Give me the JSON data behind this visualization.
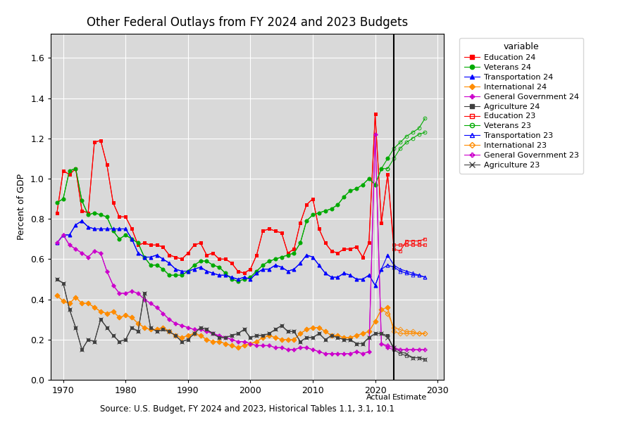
{
  "title": "Other Federal Outlays from FY 2024 and 2023 Budgets",
  "source_label": "Source: U.S. Budget, FY 2024 and 2023, Historical Tables 1.1, 3.1, 10.1",
  "ylabel": "Percent of GDP",
  "ylim": [
    0.0,
    1.72
  ],
  "xlim": [
    1968,
    2031
  ],
  "divider_year": 2023,
  "background_color": "#d9d9d9",
  "years_actual": [
    1969,
    1970,
    1971,
    1972,
    1973,
    1974,
    1975,
    1976,
    1977,
    1978,
    1979,
    1980,
    1981,
    1982,
    1983,
    1984,
    1985,
    1986,
    1987,
    1988,
    1989,
    1990,
    1991,
    1992,
    1993,
    1994,
    1995,
    1996,
    1997,
    1998,
    1999,
    2000,
    2001,
    2002,
    2003,
    2004,
    2005,
    2006,
    2007,
    2008,
    2009,
    2010,
    2011,
    2012,
    2013,
    2014,
    2015,
    2016,
    2017,
    2018,
    2019,
    2020,
    2021,
    2022
  ],
  "education_24": [
    0.83,
    1.04,
    1.02,
    1.05,
    0.84,
    0.83,
    1.18,
    1.19,
    1.07,
    0.88,
    0.81,
    0.81,
    0.75,
    0.67,
    0.68,
    0.67,
    0.67,
    0.66,
    0.62,
    0.61,
    0.6,
    0.63,
    0.67,
    0.68,
    0.62,
    0.63,
    0.6,
    0.6,
    0.58,
    0.54,
    0.53,
    0.55,
    0.62,
    0.74,
    0.75,
    0.74,
    0.73,
    0.63,
    0.65,
    0.78,
    0.87,
    0.9,
    0.75,
    0.68,
    0.64,
    0.63,
    0.65,
    0.65,
    0.66,
    0.61,
    0.68,
    1.32,
    0.78,
    1.02
  ],
  "education_24_est_x": [
    2022,
    2023,
    2024,
    2025,
    2026,
    2027,
    2028
  ],
  "education_24_est_y": [
    1.02,
    0.65,
    0.64,
    0.69,
    0.69,
    0.69,
    0.7
  ],
  "veterans_24": [
    0.88,
    0.9,
    1.04,
    1.05,
    0.89,
    0.82,
    0.83,
    0.82,
    0.81,
    0.74,
    0.7,
    0.72,
    0.7,
    0.68,
    0.61,
    0.57,
    0.57,
    0.55,
    0.52,
    0.52,
    0.52,
    0.54,
    0.57,
    0.59,
    0.59,
    0.57,
    0.56,
    0.53,
    0.5,
    0.49,
    0.5,
    0.51,
    0.54,
    0.57,
    0.59,
    0.6,
    0.61,
    0.62,
    0.63,
    0.68,
    0.79,
    0.82,
    0.83,
    0.84,
    0.85,
    0.87,
    0.91,
    0.94,
    0.95,
    0.97,
    1.0,
    0.97,
    1.05,
    1.1
  ],
  "veterans_24_est_x": [
    2022,
    2023,
    2024,
    2025,
    2026,
    2027,
    2028
  ],
  "veterans_24_est_y": [
    1.1,
    1.15,
    1.18,
    1.21,
    1.23,
    1.25,
    1.3
  ],
  "transportation_24": [
    0.68,
    0.72,
    0.72,
    0.77,
    0.79,
    0.76,
    0.75,
    0.75,
    0.75,
    0.75,
    0.75,
    0.75,
    0.7,
    0.63,
    0.61,
    0.61,
    0.62,
    0.6,
    0.58,
    0.55,
    0.54,
    0.54,
    0.55,
    0.56,
    0.54,
    0.53,
    0.52,
    0.52,
    0.51,
    0.5,
    0.51,
    0.5,
    0.53,
    0.55,
    0.55,
    0.57,
    0.56,
    0.54,
    0.55,
    0.58,
    0.62,
    0.61,
    0.57,
    0.53,
    0.51,
    0.51,
    0.53,
    0.52,
    0.5,
    0.5,
    0.52,
    0.47,
    0.55,
    0.62
  ],
  "transportation_24_est_x": [
    2022,
    2023,
    2024,
    2025,
    2026,
    2027,
    2028
  ],
  "transportation_24_est_y": [
    0.62,
    0.57,
    0.55,
    0.54,
    0.53,
    0.52,
    0.51
  ],
  "international_24": [
    0.42,
    0.39,
    0.38,
    0.41,
    0.38,
    0.38,
    0.36,
    0.34,
    0.33,
    0.34,
    0.31,
    0.32,
    0.31,
    0.28,
    0.26,
    0.25,
    0.25,
    0.26,
    0.24,
    0.22,
    0.21,
    0.22,
    0.23,
    0.22,
    0.2,
    0.19,
    0.19,
    0.18,
    0.17,
    0.16,
    0.17,
    0.18,
    0.19,
    0.21,
    0.22,
    0.21,
    0.2,
    0.2,
    0.2,
    0.23,
    0.25,
    0.26,
    0.26,
    0.24,
    0.22,
    0.22,
    0.21,
    0.21,
    0.22,
    0.23,
    0.24,
    0.29,
    0.35,
    0.36
  ],
  "international_24_est_x": [
    2022,
    2023,
    2024,
    2025,
    2026,
    2027,
    2028
  ],
  "international_24_est_y": [
    0.36,
    0.24,
    0.23,
    0.23,
    0.23,
    0.23,
    0.23
  ],
  "gengovt_24": [
    0.68,
    0.72,
    0.67,
    0.65,
    0.63,
    0.61,
    0.64,
    0.63,
    0.54,
    0.47,
    0.43,
    0.43,
    0.44,
    0.43,
    0.4,
    0.38,
    0.36,
    0.33,
    0.3,
    0.28,
    0.27,
    0.26,
    0.25,
    0.25,
    0.24,
    0.23,
    0.22,
    0.21,
    0.2,
    0.19,
    0.19,
    0.18,
    0.17,
    0.17,
    0.17,
    0.16,
    0.16,
    0.15,
    0.15,
    0.16,
    0.16,
    0.15,
    0.14,
    0.13,
    0.13,
    0.13,
    0.13,
    0.13,
    0.14,
    0.13,
    0.14,
    1.22,
    0.18,
    0.16
  ],
  "gengovt_24_est_x": [
    2022,
    2023,
    2024,
    2025,
    2026,
    2027,
    2028
  ],
  "gengovt_24_est_y": [
    0.16,
    0.15,
    0.15,
    0.15,
    0.15,
    0.15,
    0.15
  ],
  "agriculture_24": [
    0.5,
    0.48,
    0.35,
    0.26,
    0.15,
    0.2,
    0.19,
    0.3,
    0.26,
    0.22,
    0.19,
    0.2,
    0.26,
    0.24,
    0.43,
    0.26,
    0.24,
    0.25,
    0.24,
    0.22,
    0.19,
    0.2,
    0.23,
    0.26,
    0.25,
    0.23,
    0.21,
    0.21,
    0.22,
    0.23,
    0.25,
    0.21,
    0.22,
    0.22,
    0.23,
    0.25,
    0.27,
    0.24,
    0.24,
    0.19,
    0.21,
    0.21,
    0.23,
    0.2,
    0.22,
    0.21,
    0.2,
    0.2,
    0.18,
    0.18,
    0.21,
    0.23,
    0.23,
    0.22
  ],
  "agriculture_24_est_x": [
    2022,
    2023,
    2024,
    2025,
    2026,
    2027,
    2028
  ],
  "agriculture_24_est_y": [
    0.22,
    0.15,
    0.13,
    0.12,
    0.11,
    0.11,
    0.1
  ],
  "education_23": [
    0.83,
    1.04,
    1.02,
    1.05,
    0.84,
    0.83,
    1.18,
    1.19,
    1.07,
    0.88,
    0.81,
    0.81,
    0.75,
    0.67,
    0.68,
    0.67,
    0.67,
    0.66,
    0.62,
    0.61,
    0.6,
    0.63,
    0.67,
    0.68,
    0.62,
    0.63,
    0.6,
    0.6,
    0.58,
    0.54,
    0.53,
    0.55,
    0.62,
    0.74,
    0.75,
    0.74,
    0.73,
    0.63,
    0.65,
    0.78,
    0.87,
    0.9,
    0.75,
    0.68,
    0.64,
    0.63,
    0.65,
    0.65,
    0.66,
    0.61,
    0.68,
    1.32,
    0.78,
    1.02
  ],
  "education_23_est_x": [
    2022,
    2023,
    2024,
    2025,
    2026,
    2027,
    2028
  ],
  "education_23_est_y": [
    1.02,
    0.67,
    0.67,
    0.67,
    0.67,
    0.67,
    0.67
  ],
  "veterans_23": [
    0.88,
    0.9,
    1.04,
    1.05,
    0.89,
    0.82,
    0.83,
    0.82,
    0.81,
    0.74,
    0.7,
    0.72,
    0.7,
    0.68,
    0.61,
    0.57,
    0.57,
    0.55,
    0.52,
    0.52,
    0.52,
    0.54,
    0.57,
    0.59,
    0.59,
    0.57,
    0.56,
    0.53,
    0.5,
    0.49,
    0.5,
    0.51,
    0.54,
    0.57,
    0.59,
    0.6,
    0.61,
    0.62,
    0.63,
    0.68,
    0.79,
    0.82,
    0.83,
    0.84,
    0.85,
    0.87,
    0.91,
    0.94,
    0.95,
    0.97,
    1.0,
    0.97,
    1.05,
    1.05
  ],
  "veterans_23_est_x": [
    2022,
    2023,
    2024,
    2025,
    2026,
    2027,
    2028
  ],
  "veterans_23_est_y": [
    1.05,
    1.1,
    1.15,
    1.18,
    1.2,
    1.22,
    1.23
  ],
  "transportation_23": [
    0.68,
    0.72,
    0.72,
    0.77,
    0.79,
    0.76,
    0.75,
    0.75,
    0.75,
    0.75,
    0.75,
    0.75,
    0.7,
    0.63,
    0.61,
    0.61,
    0.62,
    0.6,
    0.58,
    0.55,
    0.54,
    0.54,
    0.55,
    0.56,
    0.54,
    0.53,
    0.52,
    0.52,
    0.51,
    0.5,
    0.51,
    0.5,
    0.53,
    0.55,
    0.55,
    0.57,
    0.56,
    0.54,
    0.55,
    0.58,
    0.62,
    0.61,
    0.57,
    0.53,
    0.51,
    0.51,
    0.53,
    0.52,
    0.5,
    0.5,
    0.52,
    0.47,
    0.55,
    0.57
  ],
  "transportation_23_est_x": [
    2022,
    2023,
    2024,
    2025,
    2026,
    2027,
    2028
  ],
  "transportation_23_est_y": [
    0.57,
    0.56,
    0.54,
    0.53,
    0.52,
    0.52,
    0.51
  ],
  "international_23": [
    0.42,
    0.39,
    0.38,
    0.41,
    0.38,
    0.38,
    0.36,
    0.34,
    0.33,
    0.34,
    0.31,
    0.32,
    0.31,
    0.28,
    0.26,
    0.25,
    0.25,
    0.26,
    0.24,
    0.22,
    0.21,
    0.22,
    0.23,
    0.22,
    0.2,
    0.19,
    0.19,
    0.18,
    0.17,
    0.16,
    0.17,
    0.18,
    0.19,
    0.21,
    0.22,
    0.21,
    0.2,
    0.2,
    0.2,
    0.23,
    0.25,
    0.26,
    0.26,
    0.24,
    0.22,
    0.22,
    0.21,
    0.21,
    0.22,
    0.23,
    0.24,
    0.29,
    0.35,
    0.33
  ],
  "international_23_est_x": [
    2022,
    2023,
    2024,
    2025,
    2026,
    2027,
    2028
  ],
  "international_23_est_y": [
    0.33,
    0.26,
    0.25,
    0.24,
    0.24,
    0.23,
    0.23
  ],
  "gengovt_23": [
    0.68,
    0.72,
    0.67,
    0.65,
    0.63,
    0.61,
    0.64,
    0.63,
    0.54,
    0.47,
    0.43,
    0.43,
    0.44,
    0.43,
    0.4,
    0.38,
    0.36,
    0.33,
    0.3,
    0.28,
    0.27,
    0.26,
    0.25,
    0.25,
    0.24,
    0.23,
    0.22,
    0.21,
    0.2,
    0.19,
    0.19,
    0.18,
    0.17,
    0.17,
    0.17,
    0.16,
    0.16,
    0.15,
    0.15,
    0.16,
    0.16,
    0.15,
    0.14,
    0.13,
    0.13,
    0.13,
    0.13,
    0.13,
    0.14,
    0.13,
    0.14,
    1.22,
    0.18,
    0.17
  ],
  "gengovt_23_est_x": [
    2022,
    2023,
    2024,
    2025,
    2026,
    2027,
    2028
  ],
  "gengovt_23_est_y": [
    0.17,
    0.16,
    0.15,
    0.15,
    0.15,
    0.15,
    0.15
  ],
  "agriculture_23": [
    0.5,
    0.48,
    0.35,
    0.26,
    0.15,
    0.2,
    0.19,
    0.3,
    0.26,
    0.22,
    0.19,
    0.2,
    0.26,
    0.24,
    0.43,
    0.26,
    0.24,
    0.25,
    0.24,
    0.22,
    0.19,
    0.2,
    0.23,
    0.26,
    0.25,
    0.23,
    0.21,
    0.21,
    0.22,
    0.23,
    0.25,
    0.21,
    0.22,
    0.22,
    0.23,
    0.25,
    0.27,
    0.24,
    0.24,
    0.19,
    0.21,
    0.21,
    0.23,
    0.2,
    0.22,
    0.21,
    0.2,
    0.2,
    0.18,
    0.18,
    0.21,
    0.23,
    0.23,
    0.21
  ],
  "agriculture_23_est_x": [
    2022,
    2023,
    2024,
    2025,
    2026,
    2027,
    2028
  ],
  "agriculture_23_est_y": [
    0.21,
    0.16,
    0.14,
    0.13,
    0.11,
    0.11,
    0.1
  ]
}
